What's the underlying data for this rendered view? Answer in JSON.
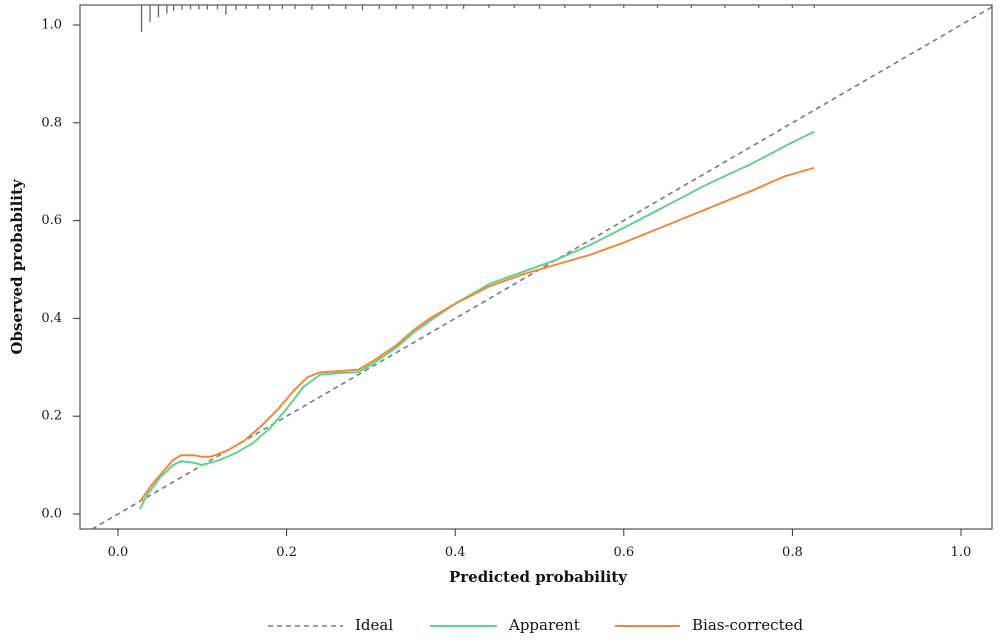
{
  "chart_data": {
    "type": "line",
    "title": "",
    "xlabel": "Predicted probability",
    "ylabel": "Observed probability",
    "xlim": [
      -0.05,
      1.04
    ],
    "ylim": [
      -0.02,
      1.04
    ],
    "x_ticks": [
      0.0,
      0.2,
      0.4,
      0.6,
      0.8,
      1.0
    ],
    "y_ticks": [
      0.0,
      0.2,
      0.4,
      0.6,
      0.8,
      1.0
    ],
    "x_tick_labels": [
      "0.0",
      "0.2",
      "0.4",
      "0.6",
      "0.8",
      "1.0"
    ],
    "y_tick_labels": [
      "0.0",
      "0.2",
      "0.4",
      "0.6",
      "0.8",
      "1.0"
    ],
    "grid": false,
    "legend_position": "bottom",
    "rug_position": "top",
    "series": [
      {
        "name": "Ideal",
        "style": "dashed",
        "color": "#6e7e88",
        "x": [
          -0.04,
          1.04
        ],
        "y": [
          -0.04,
          1.04
        ]
      },
      {
        "name": "Apparent",
        "style": "solid",
        "color": "#5fd38d",
        "x": [
          0.026,
          0.035,
          0.05,
          0.065,
          0.075,
          0.09,
          0.1,
          0.12,
          0.14,
          0.16,
          0.18,
          0.2,
          0.22,
          0.24,
          0.26,
          0.285,
          0.3,
          0.33,
          0.35,
          0.37,
          0.4,
          0.44,
          0.48,
          0.52,
          0.56,
          0.6,
          0.65,
          0.7,
          0.75,
          0.8,
          0.826
        ],
        "y": [
          0.01,
          0.04,
          0.075,
          0.1,
          0.108,
          0.105,
          0.1,
          0.11,
          0.125,
          0.145,
          0.175,
          0.215,
          0.26,
          0.285,
          0.288,
          0.29,
          0.305,
          0.34,
          0.37,
          0.395,
          0.43,
          0.47,
          0.495,
          0.52,
          0.55,
          0.585,
          0.63,
          0.675,
          0.715,
          0.76,
          0.782
        ]
      },
      {
        "name": "Bias-corrected",
        "style": "solid",
        "color": "#ef8a3c",
        "x": [
          0.026,
          0.04,
          0.055,
          0.065,
          0.075,
          0.09,
          0.1,
          0.11,
          0.13,
          0.15,
          0.17,
          0.19,
          0.21,
          0.225,
          0.24,
          0.26,
          0.285,
          0.3,
          0.33,
          0.35,
          0.37,
          0.4,
          0.44,
          0.48,
          0.52,
          0.56,
          0.6,
          0.65,
          0.7,
          0.75,
          0.79,
          0.826
        ],
        "y": [
          0.025,
          0.06,
          0.09,
          0.11,
          0.12,
          0.12,
          0.117,
          0.117,
          0.13,
          0.15,
          0.18,
          0.215,
          0.255,
          0.28,
          0.29,
          0.292,
          0.295,
          0.31,
          0.345,
          0.375,
          0.4,
          0.43,
          0.465,
          0.49,
          0.51,
          0.53,
          0.555,
          0.59,
          0.625,
          0.66,
          0.69,
          0.708
        ]
      }
    ],
    "rug": {
      "x": [
        0.028,
        0.038,
        0.048,
        0.058,
        0.066,
        0.076,
        0.086,
        0.096,
        0.106,
        0.118,
        0.128,
        0.14,
        0.152,
        0.166,
        0.18,
        0.195,
        0.21,
        0.23,
        0.25,
        0.27,
        0.29,
        0.31,
        0.33,
        0.35,
        0.37,
        0.39,
        0.41,
        0.44,
        0.47,
        0.5,
        0.53,
        0.56,
        0.6,
        0.64,
        0.68,
        0.72,
        0.76,
        0.8,
        0.826
      ],
      "heights": [
        0.055,
        0.035,
        0.025,
        0.018,
        0.012,
        0.01,
        0.009,
        0.009,
        0.009,
        0.009,
        0.02,
        0.01,
        0.008,
        0.008,
        0.01,
        0.008,
        0.008,
        0.01,
        0.008,
        0.008,
        0.01,
        0.008,
        0.008,
        0.008,
        0.008,
        0.008,
        0.008,
        0.006,
        0.006,
        0.008,
        0.006,
        0.006,
        0.006,
        0.006,
        0.006,
        0.006,
        0.006,
        0.006,
        0.006
      ]
    }
  },
  "legend": {
    "items": [
      {
        "label": "Ideal",
        "color": "#6e7e88",
        "style": "dashed"
      },
      {
        "label": "Apparent",
        "color": "#5fd38d",
        "style": "solid"
      },
      {
        "label": "Bias-corrected",
        "color": "#ef8a3c",
        "style": "solid"
      }
    ]
  }
}
